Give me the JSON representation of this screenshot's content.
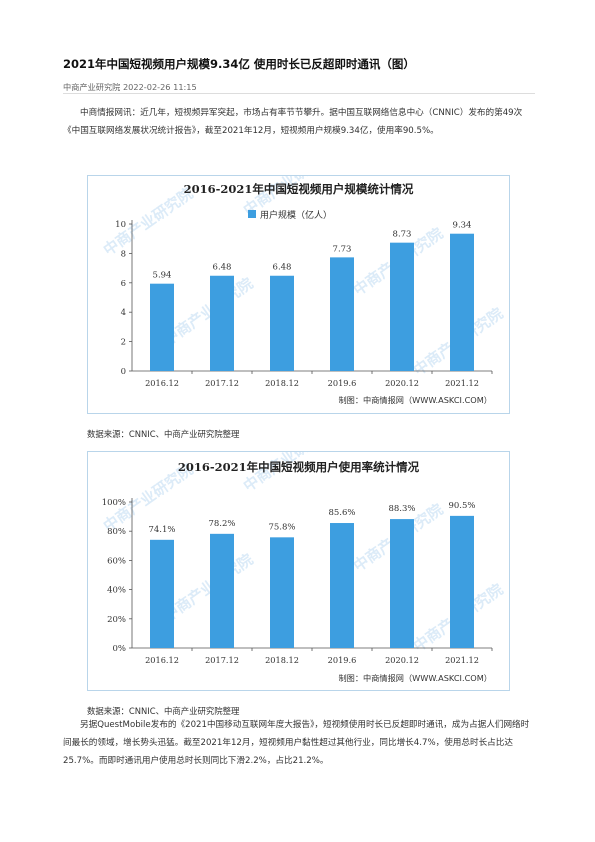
{
  "article": {
    "title": "2021年中国短视频用户规模9.34亿 使用时长已反超即时通讯（图）",
    "source": "中商产业研究院",
    "date": "2022-02-26 11:15",
    "paragraph1": "中商情报网讯：近几年，短视频异军突起，市场占有率节节攀升。据中国互联网络信息中心（CNNIC）发布的第49次《中国互联网络发展状况统计报告》，截至2021年12月，短视频用户规模9.34亿，使用率90.5%。",
    "caption1": "数据来源：CNNIC、中商产业研究院整理",
    "caption2": "数据来源：CNNIC、中商产业研究院整理",
    "paragraph2": "另据QuestMobile发布的《2021中国移动互联网年度大报告》，短视频使用时长已反超即时通讯，成为占据人们网络时间最长的领域，增长势头迅猛。截至2021年12月，短视频用户黏性超过其他行业，同比增长4.7%，使用总时长占比达25.7%。而即时通讯用户使用总时长则同比下滑2.2%，占比21.2%。"
  },
  "watermark": "中商产业研究院",
  "colors": {
    "bar": "#3d9ee0",
    "border": "#b9d5ea"
  },
  "chart_data": [
    {
      "type": "bar",
      "title": "2016-2021年中国短视频用户规模统计情况",
      "categories": [
        "2016.12",
        "2017.12",
        "2018.12",
        "2019.6",
        "2020.12",
        "2021.12"
      ],
      "series": [
        {
          "name": "用户规模（亿人）",
          "values": [
            5.94,
            6.48,
            6.48,
            7.73,
            8.73,
            9.34
          ]
        }
      ],
      "value_labels": [
        "5.94",
        "6.48",
        "6.48",
        "7.73",
        "8.73",
        "9.34"
      ],
      "ylim": [
        0,
        10
      ],
      "yticks": [
        "0",
        "2",
        "4",
        "6",
        "8",
        "10"
      ],
      "legend": "top-left",
      "credit": "制图：中商情报网（WWW.ASKCI.COM）"
    },
    {
      "type": "bar",
      "title": "2016-2021年中国短视频用户使用率统计情况",
      "categories": [
        "2016.12",
        "2017.12",
        "2018.12",
        "2019.6",
        "2020.12",
        "2021.12"
      ],
      "series": [
        {
          "values": [
            74.1,
            78.2,
            75.8,
            85.6,
            88.3,
            90.5
          ]
        }
      ],
      "value_labels": [
        "74.1%",
        "78.2%",
        "75.8%",
        "85.6%",
        "88.3%",
        "90.5%"
      ],
      "ylim": [
        0,
        100
      ],
      "yticks": [
        "0%",
        "20%",
        "40%",
        "60%",
        "80%",
        "100%"
      ],
      "credit": "制图：中商情报网（WWW.ASKCI.COM）"
    }
  ]
}
